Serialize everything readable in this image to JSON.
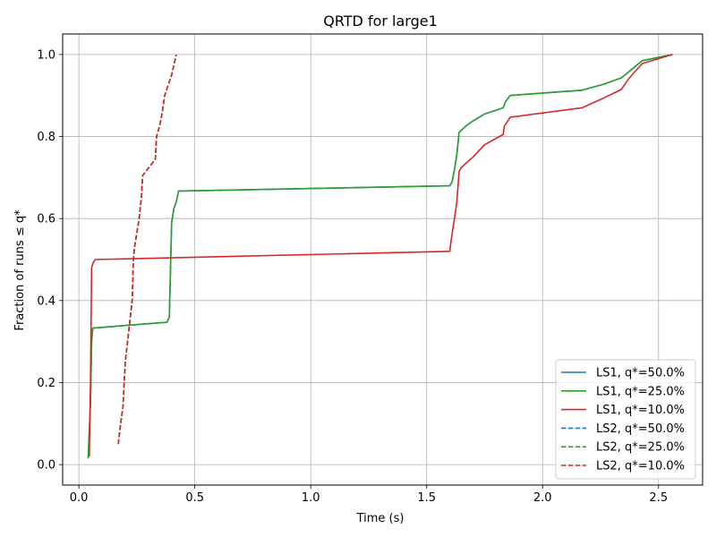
{
  "chart_data": {
    "type": "line",
    "title": "QRTD for large1",
    "xlabel": "Time (s)",
    "ylabel": "Fraction of runs ≤ q*",
    "xlim": [
      -0.07,
      2.69
    ],
    "ylim": [
      -0.05,
      1.05
    ],
    "xticks": [
      0.0,
      0.5,
      1.0,
      1.5,
      2.0,
      2.5
    ],
    "xtick_labels": [
      "0.0",
      "0.5",
      "1.0",
      "1.5",
      "2.0",
      "2.5"
    ],
    "yticks": [
      0.0,
      0.2,
      0.4,
      0.6,
      0.8,
      1.0
    ],
    "ytick_labels": [
      "0.0",
      "0.2",
      "0.4",
      "0.6",
      "0.8",
      "1.0"
    ],
    "grid": true,
    "legend_position": "lower-right",
    "series": [
      {
        "name": "LS1, q*=50.0%",
        "color": "#1f77b4",
        "dash": "solid",
        "x": [
          0.04,
          0.05,
          0.055,
          0.06,
          0.38,
          0.39,
          0.395,
          0.4,
          0.41,
          0.42,
          0.43,
          1.6,
          1.61,
          1.62,
          1.63,
          1.64,
          1.67,
          1.7,
          1.75,
          1.83,
          1.84,
          1.86,
          2.17,
          2.26,
          2.34,
          2.43,
          2.56
        ],
        "y": [
          0.015,
          0.15,
          0.3,
          0.333,
          0.347,
          0.36,
          0.47,
          0.59,
          0.625,
          0.64,
          0.667,
          0.68,
          0.69,
          0.72,
          0.755,
          0.81,
          0.826,
          0.838,
          0.855,
          0.87,
          0.885,
          0.9,
          0.913,
          0.927,
          0.943,
          0.985,
          1.0
        ]
      },
      {
        "name": "LS1, q*=25.0%",
        "color": "#2ca02c",
        "dash": "solid",
        "x": [
          0.04,
          0.05,
          0.055,
          0.06,
          0.38,
          0.39,
          0.395,
          0.4,
          0.41,
          0.42,
          0.43,
          1.6,
          1.61,
          1.62,
          1.63,
          1.64,
          1.67,
          1.7,
          1.75,
          1.83,
          1.84,
          1.86,
          2.17,
          2.26,
          2.34,
          2.43,
          2.56
        ],
        "y": [
          0.015,
          0.15,
          0.3,
          0.333,
          0.347,
          0.36,
          0.47,
          0.59,
          0.625,
          0.64,
          0.667,
          0.68,
          0.69,
          0.72,
          0.755,
          0.81,
          0.826,
          0.838,
          0.855,
          0.87,
          0.885,
          0.9,
          0.913,
          0.927,
          0.943,
          0.985,
          1.0
        ]
      },
      {
        "name": "LS1, q*=10.0%",
        "color": "#d62728",
        "dash": "solid",
        "x": [
          0.045,
          0.05,
          0.055,
          0.06,
          0.07,
          1.6,
          1.605,
          1.62,
          1.63,
          1.64,
          1.65,
          1.7,
          1.75,
          1.83,
          1.835,
          1.86,
          2.17,
          2.26,
          2.34,
          2.37,
          2.43,
          2.56
        ],
        "y": [
          0.02,
          0.2,
          0.48,
          0.49,
          0.5,
          0.52,
          0.545,
          0.6,
          0.64,
          0.715,
          0.725,
          0.75,
          0.78,
          0.805,
          0.825,
          0.847,
          0.87,
          0.893,
          0.915,
          0.94,
          0.978,
          1.0
        ]
      },
      {
        "name": "LS2, q*=50.0%",
        "color": "#1f77b4",
        "dash": "dashed",
        "x": [
          0.17,
          0.18,
          0.19,
          0.2,
          0.21,
          0.22,
          0.23,
          0.235,
          0.24,
          0.26,
          0.27,
          0.275,
          0.33,
          0.335,
          0.35,
          0.36,
          0.37,
          0.4,
          0.42
        ],
        "y": [
          0.05,
          0.1,
          0.14,
          0.25,
          0.3,
          0.35,
          0.4,
          0.5,
          0.53,
          0.6,
          0.655,
          0.705,
          0.745,
          0.8,
          0.83,
          0.86,
          0.9,
          0.95,
          1.0
        ]
      },
      {
        "name": "LS2, q*=25.0%",
        "color": "#2ca02c",
        "dash": "dashed",
        "x": [
          0.17,
          0.18,
          0.19,
          0.2,
          0.21,
          0.22,
          0.23,
          0.235,
          0.24,
          0.26,
          0.27,
          0.275,
          0.33,
          0.335,
          0.35,
          0.36,
          0.37,
          0.4,
          0.42
        ],
        "y": [
          0.05,
          0.1,
          0.14,
          0.25,
          0.3,
          0.35,
          0.4,
          0.5,
          0.53,
          0.6,
          0.655,
          0.705,
          0.745,
          0.8,
          0.83,
          0.86,
          0.9,
          0.95,
          1.0
        ]
      },
      {
        "name": "LS2, q*=10.0%",
        "color": "#d62728",
        "dash": "dashed",
        "x": [
          0.17,
          0.18,
          0.19,
          0.2,
          0.21,
          0.22,
          0.23,
          0.235,
          0.24,
          0.26,
          0.27,
          0.275,
          0.33,
          0.335,
          0.35,
          0.36,
          0.37,
          0.4,
          0.42
        ],
        "y": [
          0.05,
          0.1,
          0.14,
          0.25,
          0.3,
          0.35,
          0.4,
          0.5,
          0.53,
          0.6,
          0.655,
          0.705,
          0.745,
          0.8,
          0.83,
          0.86,
          0.9,
          0.95,
          1.0
        ]
      }
    ]
  }
}
